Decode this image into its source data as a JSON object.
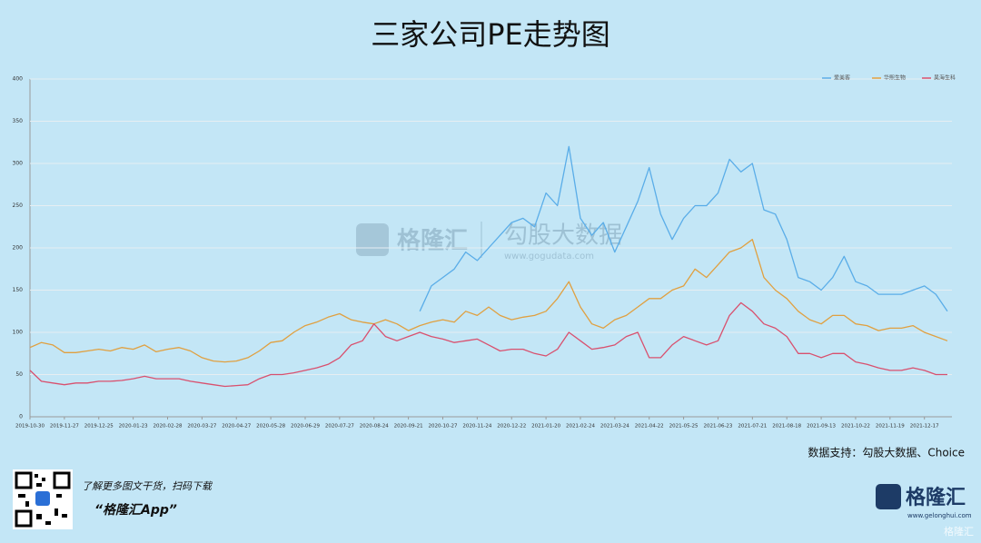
{
  "chart_data": {
    "type": "line",
    "title": "三家公司PE走势图",
    "categories": [
      "2019-10-30",
      null,
      null,
      "2019-11-27",
      null,
      null,
      "2019-12-25",
      null,
      null,
      "2020-01-23",
      null,
      null,
      "2020-02-28",
      null,
      null,
      "2020-03-27",
      null,
      null,
      "2020-04-27",
      null,
      null,
      "2020-05-28",
      null,
      null,
      "2020-06-29",
      null,
      null,
      "2020-07-27",
      null,
      null,
      "2020-08-24",
      null,
      null,
      "2020-09-21",
      null,
      null,
      "2020-10-27",
      null,
      null,
      "2020-11-24",
      null,
      null,
      "2020-12-22",
      null,
      null,
      "2021-01-20",
      null,
      null,
      "2021-02-24",
      null,
      null,
      "2021-03-24",
      null,
      null,
      "2021-04-22",
      null,
      null,
      "2021-05-25",
      null,
      null,
      "2021-06-23",
      null,
      null,
      "2021-07-21",
      null,
      null,
      "2021-08-18",
      null,
      null,
      "2021-09-13",
      null,
      null,
      "2021-10-22",
      null,
      null,
      "2021-11-19",
      null,
      null,
      "2021-12-17",
      null,
      null
    ],
    "series": [
      {
        "name": "爱美客",
        "color": "#5aade8",
        "values": [
          null,
          null,
          null,
          null,
          null,
          null,
          null,
          null,
          null,
          null,
          null,
          null,
          null,
          null,
          null,
          null,
          null,
          null,
          null,
          null,
          null,
          null,
          null,
          null,
          null,
          null,
          null,
          null,
          null,
          null,
          null,
          null,
          null,
          null,
          125,
          155,
          165,
          175,
          195,
          185,
          200,
          215,
          230,
          235,
          225,
          265,
          250,
          320,
          235,
          215,
          230,
          195,
          225,
          255,
          295,
          240,
          210,
          235,
          250,
          250,
          265,
          305,
          290,
          300,
          245,
          240,
          210,
          165,
          160,
          150,
          165,
          190,
          160,
          155,
          145,
          145,
          145,
          150,
          155,
          145,
          125
        ]
      },
      {
        "name": "华熙生物",
        "color": "#e0a040",
        "values": [
          82,
          88,
          85,
          76,
          76,
          78,
          80,
          78,
          82,
          80,
          85,
          77,
          80,
          82,
          78,
          70,
          66,
          65,
          66,
          70,
          78,
          88,
          90,
          100,
          108,
          112,
          118,
          122,
          115,
          112,
          110,
          115,
          110,
          102,
          108,
          112,
          115,
          112,
          125,
          120,
          130,
          120,
          115,
          118,
          120,
          125,
          140,
          160,
          130,
          110,
          105,
          115,
          120,
          130,
          140,
          140,
          150,
          155,
          175,
          165,
          180,
          195,
          200,
          210,
          165,
          150,
          140,
          125,
          115,
          110,
          120,
          120,
          110,
          108,
          102,
          105,
          105,
          108,
          100,
          95,
          90
        ]
      },
      {
        "name": "昊海生科",
        "color": "#d9506e",
        "values": [
          55,
          42,
          40,
          38,
          40,
          40,
          42,
          42,
          43,
          45,
          48,
          45,
          45,
          45,
          42,
          40,
          38,
          36,
          37,
          38,
          45,
          50,
          50,
          52,
          55,
          58,
          62,
          70,
          85,
          90,
          110,
          95,
          90,
          95,
          100,
          95,
          92,
          88,
          90,
          92,
          85,
          78,
          80,
          80,
          75,
          72,
          80,
          100,
          90,
          80,
          82,
          85,
          95,
          100,
          70,
          70,
          85,
          95,
          90,
          85,
          90,
          120,
          135,
          125,
          110,
          105,
          95,
          75,
          75,
          70,
          75,
          75,
          65,
          62,
          58,
          55,
          55,
          58,
          55,
          50,
          50
        ]
      }
    ],
    "ylim": [
      0,
      400
    ],
    "yticks": [
      0,
      50,
      100,
      150,
      200,
      250,
      300,
      350,
      400
    ],
    "grid": true,
    "legend": "top-right"
  },
  "source": "数据支持：勾股大数据、Choice",
  "watermark": {
    "brand": "格隆汇",
    "partner": "勾股大数据",
    "url": "www.gogudata.com"
  },
  "footer": {
    "cta": "了解更多图文干货，扫码下载",
    "app": "“格隆汇App”",
    "brand": "格隆汇",
    "url": "www.gelonghui.com",
    "corner": "格隆汇"
  }
}
